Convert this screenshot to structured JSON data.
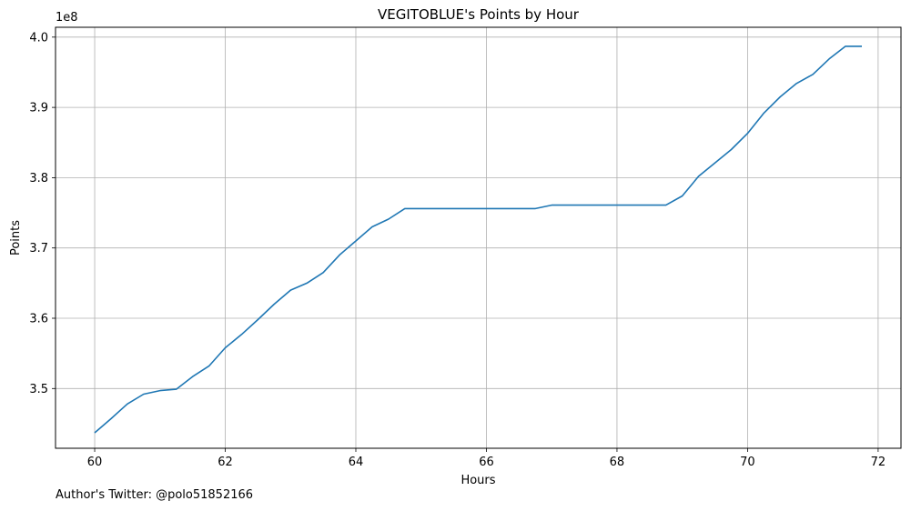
{
  "chart_data": {
    "type": "line",
    "title": "VEGITOBLUE's Points by Hour",
    "xlabel": "Hours",
    "ylabel": "Points",
    "y_multiplier_label": "1e8",
    "xlim": [
      59.4,
      72.35
    ],
    "ylim": [
      3.415,
      4.014
    ],
    "x_ticks": [
      60,
      62,
      64,
      66,
      68,
      70,
      72
    ],
    "y_ticks": [
      3.5,
      3.6,
      3.7,
      3.8,
      3.9,
      4.0
    ],
    "grid": true,
    "line_color": "#1f77b4",
    "series": [
      {
        "x": [
          60.0,
          60.25,
          60.5,
          60.75,
          61.0,
          61.25,
          61.5,
          61.75,
          62.0,
          62.25,
          62.5,
          62.75,
          63.0,
          63.25,
          63.5,
          63.75,
          64.0,
          64.25,
          64.5,
          64.75,
          65.0,
          65.25,
          65.5,
          65.75,
          66.0,
          66.25,
          66.5,
          66.75,
          67.0,
          67.25,
          67.5,
          67.75,
          68.0,
          68.25,
          68.5,
          68.75,
          69.0,
          69.25,
          69.5,
          69.75,
          70.0,
          70.25,
          70.5,
          70.75,
          71.0,
          71.25,
          71.5,
          71.75
        ],
        "y": [
          3.437,
          3.457,
          3.478,
          3.492,
          3.497,
          3.499,
          3.517,
          3.532,
          3.558,
          3.577,
          3.598,
          3.62,
          3.64,
          3.65,
          3.665,
          3.69,
          3.71,
          3.73,
          3.741,
          3.756,
          3.756,
          3.756,
          3.756,
          3.756,
          3.756,
          3.756,
          3.756,
          3.756,
          3.761,
          3.761,
          3.761,
          3.761,
          3.761,
          3.761,
          3.761,
          3.761,
          3.774,
          3.802,
          3.821,
          3.84,
          3.863,
          3.892,
          3.915,
          3.934,
          3.947,
          3.969,
          3.987,
          3.987
        ]
      }
    ]
  },
  "footer": {
    "text": "Author's Twitter: @polo51852166"
  }
}
